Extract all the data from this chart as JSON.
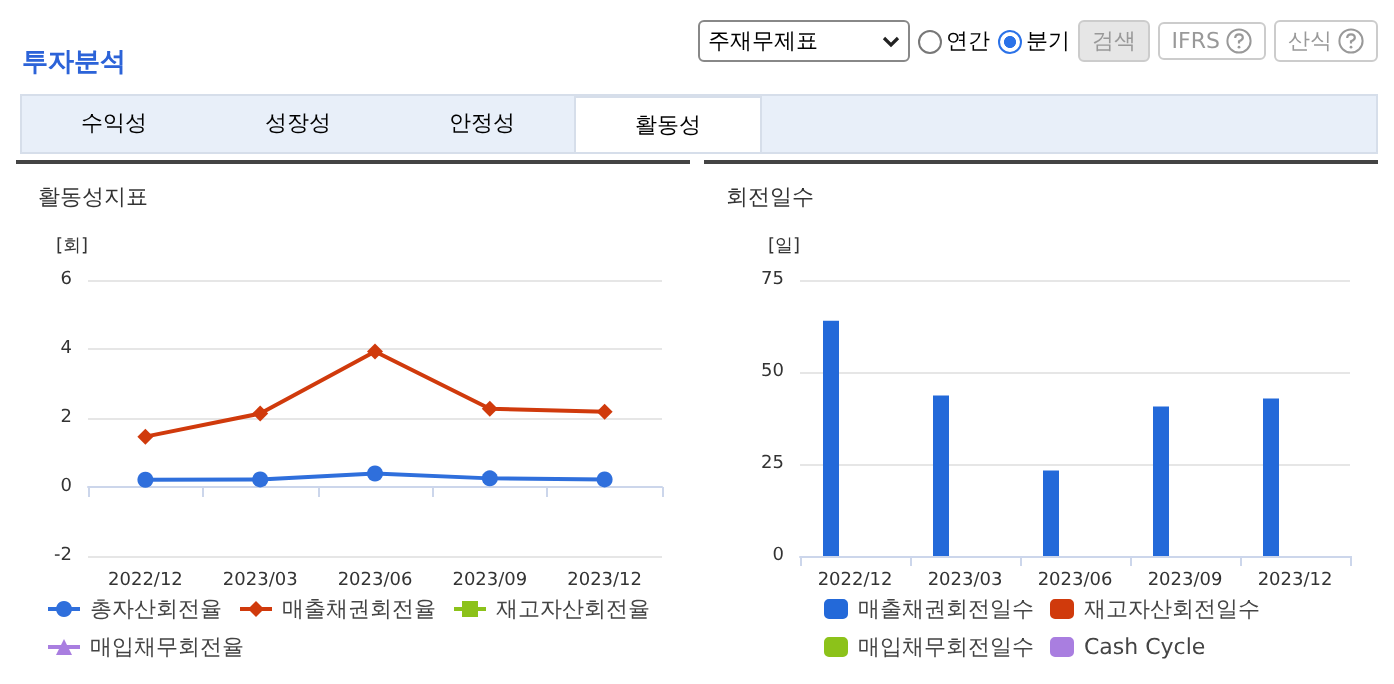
{
  "chart_data": [
    {
      "type": "other",
      "title": "투자분석",
      "annotations": [
        "주재무제표",
        "연간",
        "분기",
        "검색",
        "IFRS",
        "산식",
        "수익성",
        "성장성",
        "안정성",
        "활동성"
      ]
    },
    {
      "type": "line",
      "title": "활동성지표",
      "ylabel": "[회]",
      "categories": [
        "2022/12",
        "2023/03",
        "2023/06",
        "2023/09",
        "2023/12"
      ],
      "ylim": [
        -2,
        6
      ],
      "yticks": [
        -2,
        0,
        2,
        4,
        6
      ],
      "grid": "y",
      "legend": "bottom",
      "series": [
        {
          "name": "총자산회전율",
          "color": "#2f6fdc",
          "marker": "circle",
          "values": [
            0.21,
            0.22,
            0.39,
            0.25,
            0.22
          ]
        },
        {
          "name": "매출채권회전율",
          "color": "#d03a0c",
          "marker": "diamond",
          "values": [
            1.46,
            2.13,
            3.93,
            2.27,
            2.18
          ]
        },
        {
          "name": "재고자산회전율",
          "color": "#8cc21a",
          "marker": "square",
          "values": [
            null,
            null,
            null,
            null,
            null
          ]
        },
        {
          "name": "매입채무회전율",
          "color": "#a97ee0",
          "marker": "triangle",
          "values": [
            null,
            null,
            null,
            null,
            null
          ]
        }
      ]
    },
    {
      "type": "bar",
      "title": "회전일수",
      "ylabel": "[일]",
      "categories": [
        "2022/12",
        "2023/03",
        "2023/06",
        "2023/09",
        "2023/12"
      ],
      "ylim": [
        0,
        75
      ],
      "yticks": [
        0,
        25,
        50,
        75
      ],
      "grid": "y",
      "legend": "bottom",
      "series": [
        {
          "name": "매출채권회전일수",
          "color": "#2369d9",
          "values": [
            63.9,
            43.6,
            23.2,
            40.6,
            42.8
          ]
        },
        {
          "name": "재고자산회전일수",
          "color": "#d03a0c",
          "values": [
            null,
            null,
            null,
            null,
            null
          ]
        },
        {
          "name": "매입채무회전일수",
          "color": "#8cc21a",
          "values": [
            null,
            null,
            null,
            null,
            null
          ]
        },
        {
          "name": "Cash Cycle",
          "color": "#a97ee0",
          "values": [
            null,
            null,
            null,
            null,
            null
          ]
        }
      ]
    }
  ]
}
